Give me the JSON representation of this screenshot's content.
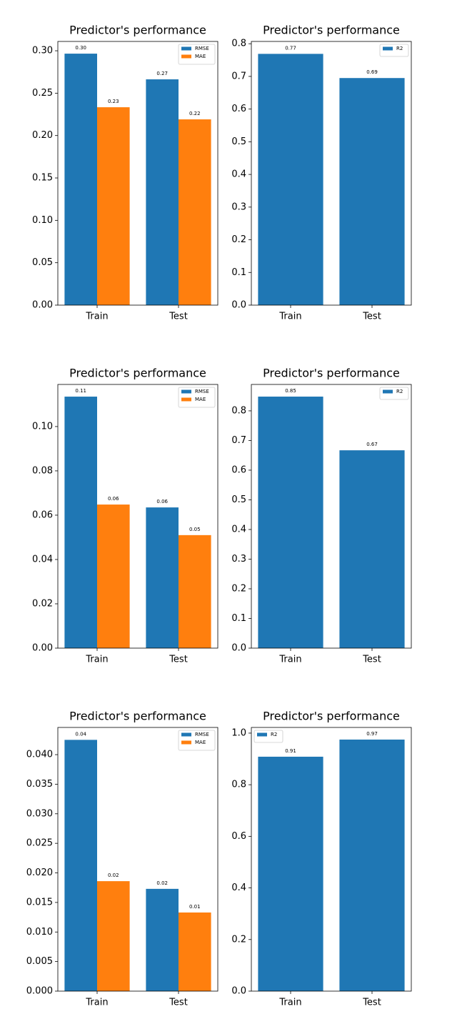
{
  "chart_data": [
    {
      "type": "bar",
      "title": "Predictor's performance",
      "categories": [
        "Train",
        "Test"
      ],
      "series": [
        {
          "name": "RMSE",
          "color": "#1f77b4",
          "values": [
            0.2966,
            0.2663
          ],
          "value_labels": [
            "0.30",
            "0.27"
          ]
        },
        {
          "name": "MAE",
          "color": "#ff7f0e",
          "values": [
            0.2334,
            0.2191
          ],
          "value_labels": [
            "0.23",
            "0.22"
          ]
        }
      ],
      "ylim": [
        0,
        0.311
      ],
      "yticks": [
        {
          "value": 0,
          "label": "0.00"
        },
        {
          "value": 0.05,
          "label": "0.05"
        },
        {
          "value": 0.1,
          "label": "0.10"
        },
        {
          "value": 0.15,
          "label": "0.15"
        },
        {
          "value": 0.2,
          "label": "0.20"
        },
        {
          "value": 0.25,
          "label": "0.25"
        },
        {
          "value": 0.3,
          "label": "0.30"
        }
      ],
      "legend": "upper right"
    },
    {
      "type": "bar",
      "title": "Predictor's performance",
      "categories": [
        "Train",
        "Test"
      ],
      "series": [
        {
          "name": "R2",
          "color": "#1f77b4",
          "values": [
            0.769,
            0.695
          ],
          "value_labels": [
            "0.77",
            "0.69"
          ]
        }
      ],
      "ylim": [
        0,
        0.807
      ],
      "yticks": [
        {
          "value": 0,
          "label": "0.0"
        },
        0.1,
        0.2,
        0.3,
        0.4,
        0.5,
        0.6,
        0.7,
        0.8
      ],
      "legend": "upper right"
    },
    {
      "type": "bar",
      "title": "Predictor's performance",
      "categories": [
        "Train",
        "Test"
      ],
      "series": [
        {
          "name": "RMSE",
          "color": "#1f77b4",
          "values": [
            0.1135,
            0.0635
          ],
          "value_labels": [
            "0.11",
            "0.06"
          ]
        },
        {
          "name": "MAE",
          "color": "#ff7f0e",
          "values": [
            0.0648,
            0.051
          ],
          "value_labels": [
            "0.06",
            "0.05"
          ]
        }
      ],
      "ylim": [
        0,
        0.119
      ],
      "yticks": [
        {
          "value": 0,
          "label": "0.00"
        },
        0.02,
        0.04,
        0.06,
        0.08,
        {
          "value": 0.1,
          "label": "0.10"
        }
      ],
      "legend": "upper right"
    },
    {
      "type": "bar",
      "title": "Predictor's performance",
      "categories": [
        "Train",
        "Test"
      ],
      "series": [
        {
          "name": "R2",
          "color": "#1f77b4",
          "values": [
            0.848,
            0.667
          ],
          "value_labels": [
            "0.85",
            "0.67"
          ]
        }
      ],
      "ylim": [
        0,
        0.889
      ],
      "yticks": [
        {
          "value": 0,
          "label": "0.0"
        },
        0.1,
        0.2,
        0.3,
        0.4,
        0.5,
        0.6,
        0.7,
        0.8
      ],
      "legend": "upper right"
    },
    {
      "type": "bar",
      "title": "Predictor's performance",
      "categories": [
        "Train",
        "Test"
      ],
      "series": [
        {
          "name": "RMSE",
          "color": "#1f77b4",
          "values": [
            0.0425,
            0.0173
          ],
          "value_labels": [
            "0.04",
            "0.02"
          ]
        },
        {
          "name": "MAE",
          "color": "#ff7f0e",
          "values": [
            0.0186,
            0.0133
          ],
          "value_labels": [
            "0.02",
            "0.01"
          ]
        }
      ],
      "ylim": [
        0,
        0.0446
      ],
      "yticks": [
        {
          "value": 0,
          "label": "0.000"
        },
        0.005,
        {
          "value": 0.01,
          "label": "0.010"
        },
        0.015,
        {
          "value": 0.02,
          "label": "0.020"
        },
        0.025,
        {
          "value": 0.03,
          "label": "0.030"
        },
        0.035,
        {
          "value": 0.04,
          "label": "0.040"
        }
      ],
      "legend": "upper right"
    },
    {
      "type": "bar",
      "title": "Predictor's performance",
      "categories": [
        "Train",
        "Test"
      ],
      "series": [
        {
          "name": "R2",
          "color": "#1f77b4",
          "values": [
            0.9086,
            0.975
          ],
          "value_labels": [
            "0.91",
            "0.97"
          ]
        }
      ],
      "ylim": [
        0,
        1.022
      ],
      "yticks": [
        {
          "value": 0,
          "label": "0.0"
        },
        0.2,
        0.4,
        0.6,
        0.8,
        {
          "value": 1,
          "label": "1.0"
        }
      ],
      "legend": "upper left"
    }
  ]
}
